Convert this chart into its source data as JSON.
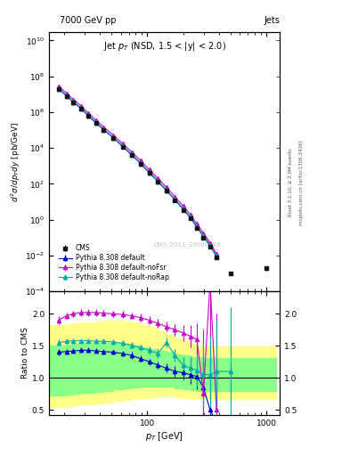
{
  "title_top": "7000 GeV pp",
  "title_right": "Jets",
  "plot_label": "Jet $p_T$ (NSD, 1.5 < |y| < 2.0)",
  "watermark": "CMS_2011_S9086218",
  "right_label": "Rivet 3.1.10, ≥ 2.9M events",
  "right_label2": "mcplots.cern.ch [arXiv:1306.3436]",
  "cms_pt": [
    18,
    21,
    24,
    28,
    32,
    37,
    43,
    52,
    62,
    74,
    88,
    104,
    123,
    145,
    171,
    200,
    230,
    261,
    296,
    337,
    381,
    500,
    700,
    1000
  ],
  "cms_val": [
    20000000.0,
    8000000.0,
    3500000.0,
    1500000.0,
    600000.0,
    250000.0,
    100000.0,
    35000.0,
    12000.0,
    4000,
    1300,
    400,
    130,
    40,
    12,
    3.5,
    1.2,
    0.35,
    0.1,
    0.03,
    0.008,
    0.001,
    3e-05,
    0.002
  ],
  "cms_yerr_lo": [
    2000000.0,
    700000.0,
    300000.0,
    120000.0,
    45000.0,
    18000.0,
    7000,
    2400,
    850,
    270,
    90,
    27,
    9,
    2.8,
    0.9,
    0.3,
    0.12,
    0.04,
    0.012,
    0.004,
    0.001,
    0.0002,
    1e-05,
    0.0005
  ],
  "cms_yerr_hi": [
    2000000.0,
    700000.0,
    300000.0,
    120000.0,
    45000.0,
    18000.0,
    7000,
    2400,
    850,
    270,
    90,
    27,
    9,
    2.8,
    0.9,
    0.3,
    0.12,
    0.04,
    0.012,
    0.004,
    0.001,
    0.0002,
    1e-05,
    0.0005
  ],
  "py_default_pt": [
    18,
    21,
    24,
    28,
    32,
    37,
    43,
    52,
    62,
    74,
    88,
    104,
    123,
    145,
    171,
    200,
    230,
    261,
    296,
    337,
    381
  ],
  "py_default_val": [
    20000000.0,
    8200000.0,
    3600000.0,
    1550000.0,
    620000.0,
    260000.0,
    105000.0,
    37000.0,
    12500.0,
    4100,
    1350,
    415,
    136,
    42,
    13,
    3.8,
    1.3,
    0.38,
    0.12,
    0.035,
    0.009
  ],
  "py_default_err_lo": [
    500000.0,
    200000.0,
    80000.0,
    35000.0,
    14000.0,
    5800,
    2300,
    820,
    280,
    90,
    28,
    9,
    2.8,
    0.9,
    0.28,
    0.09,
    0.035,
    0.012,
    0.005,
    0.003,
    0.002
  ],
  "py_default_err_hi": [
    500000.0,
    200000.0,
    80000.0,
    35000.0,
    14000.0,
    5800,
    2300,
    820,
    280,
    90,
    28,
    9,
    2.8,
    0.9,
    0.28,
    0.09,
    0.035,
    0.012,
    0.005,
    0.003,
    0.002
  ],
  "py_noFsr_pt": [
    18,
    21,
    24,
    28,
    32,
    37,
    43,
    52,
    62,
    74,
    88,
    104,
    123,
    145,
    171,
    200,
    230,
    261,
    296,
    337,
    381
  ],
  "py_noFsr_val": [
    28000000.0,
    11500000.0,
    5100000.0,
    2200000.0,
    880000.0,
    370000.0,
    150000.0,
    53000.0,
    18000.0,
    6000,
    2000,
    620,
    204,
    63,
    19.5,
    5.7,
    1.95,
    0.58,
    0.18,
    0.052,
    0.013
  ],
  "py_noFsr_err_lo": [
    700000.0,
    300000.0,
    120000.0,
    50000.0,
    20000.0,
    8500,
    3300,
    1200,
    400,
    130,
    42,
    13,
    4.2,
    1.3,
    0.42,
    0.13,
    0.05,
    0.017,
    0.007,
    0.005,
    0.003
  ],
  "py_noFsr_err_hi": [
    700000.0,
    300000.0,
    120000.0,
    50000.0,
    20000.0,
    8500,
    3300,
    1200,
    400,
    130,
    42,
    13,
    4.2,
    1.3,
    0.42,
    0.13,
    0.05,
    0.017,
    0.007,
    0.005,
    0.003
  ],
  "py_noRap_pt": [
    18,
    21,
    24,
    28,
    32,
    37,
    43,
    52,
    62,
    74,
    88,
    104,
    123,
    145,
    171,
    200,
    230,
    261,
    296,
    337,
    381
  ],
  "py_noRap_val": [
    22000000.0,
    9000000.0,
    3900000.0,
    1680000.0,
    680000.0,
    285000.0,
    115000.0,
    40500.0,
    13800.0,
    4500,
    1480,
    455,
    150,
    46,
    14,
    4.2,
    1.45,
    0.43,
    0.135,
    0.04,
    0.01
  ],
  "py_noRap_err_lo": [
    550000.0,
    220000.0,
    90000.0,
    38000.0,
    15000.0,
    6400,
    2550,
    900,
    308,
    100,
    31,
    10,
    3,
    1,
    0.31,
    0.1,
    0.04,
    0.013,
    0.006,
    0.004,
    0.002
  ],
  "py_noRap_err_hi": [
    550000.0,
    220000.0,
    90000.0,
    38000.0,
    15000.0,
    6400,
    2550,
    900,
    308,
    100,
    31,
    10,
    3,
    1,
    0.31,
    0.1,
    0.04,
    0.013,
    0.006,
    0.004,
    0.002
  ],
  "ratio_default_pt": [
    18,
    21,
    24,
    28,
    32,
    37,
    43,
    52,
    62,
    74,
    88,
    104,
    123,
    145,
    171,
    200,
    230,
    261,
    296,
    337,
    381
  ],
  "ratio_default_val": [
    1.4,
    1.41,
    1.42,
    1.43,
    1.43,
    1.42,
    1.41,
    1.4,
    1.38,
    1.35,
    1.3,
    1.25,
    1.2,
    1.15,
    1.1,
    1.08,
    1.05,
    1.02,
    0.85,
    0.5,
    0.3
  ],
  "ratio_default_err": [
    0.05,
    0.04,
    0.04,
    0.04,
    0.04,
    0.04,
    0.04,
    0.04,
    0.04,
    0.05,
    0.05,
    0.05,
    0.06,
    0.07,
    0.08,
    0.1,
    0.15,
    0.2,
    0.5,
    0.8,
    1.0
  ],
  "ratio_noFsr_pt": [
    18,
    21,
    24,
    28,
    32,
    37,
    43,
    52,
    62,
    74,
    88,
    104,
    123,
    145,
    171,
    200,
    230,
    261,
    296,
    337,
    381
  ],
  "ratio_noFsr_val": [
    1.9,
    1.97,
    2.0,
    2.02,
    2.02,
    2.02,
    2.01,
    2.0,
    1.99,
    1.97,
    1.94,
    1.9,
    1.85,
    1.8,
    1.75,
    1.7,
    1.65,
    1.6,
    0.75,
    2.5,
    0.5
  ],
  "ratio_noFsr_err": [
    0.06,
    0.05,
    0.05,
    0.05,
    0.05,
    0.05,
    0.05,
    0.05,
    0.05,
    0.05,
    0.06,
    0.06,
    0.07,
    0.08,
    0.09,
    0.12,
    0.18,
    0.25,
    1.0,
    1.5,
    1.5
  ],
  "ratio_noRap_pt": [
    18,
    21,
    24,
    28,
    32,
    37,
    43,
    52,
    62,
    74,
    88,
    104,
    123,
    145,
    171,
    200,
    230,
    261,
    296,
    337,
    381,
    500
  ],
  "ratio_noRap_val": [
    1.55,
    1.57,
    1.58,
    1.58,
    1.58,
    1.57,
    1.57,
    1.56,
    1.54,
    1.51,
    1.47,
    1.43,
    1.38,
    1.55,
    1.35,
    1.2,
    1.15,
    1.12,
    1.05,
    1.05,
    1.1,
    1.1
  ],
  "ratio_noRap_err": [
    0.05,
    0.04,
    0.04,
    0.04,
    0.04,
    0.04,
    0.04,
    0.04,
    0.05,
    0.05,
    0.05,
    0.06,
    0.07,
    0.08,
    0.1,
    0.13,
    0.18,
    0.25,
    0.5,
    0.6,
    0.8,
    1.0
  ],
  "band_yellow_pt": [
    15,
    18,
    21,
    24,
    28,
    32,
    37,
    43,
    52,
    62,
    74,
    88,
    104,
    123,
    145,
    171,
    200,
    230,
    261,
    296,
    337,
    381,
    500,
    700,
    1000,
    1200
  ],
  "band_yellow_lo": [
    0.55,
    0.55,
    0.56,
    0.57,
    0.58,
    0.59,
    0.6,
    0.62,
    0.64,
    0.66,
    0.68,
    0.68,
    0.7,
    0.71,
    0.72,
    0.7,
    0.68,
    0.68,
    0.68,
    0.67,
    0.67,
    0.67,
    0.67,
    0.67,
    0.67,
    0.67
  ],
  "band_yellow_hi": [
    1.82,
    1.82,
    1.84,
    1.85,
    1.86,
    1.87,
    1.88,
    1.89,
    1.89,
    1.88,
    1.86,
    1.83,
    1.78,
    1.73,
    1.67,
    1.62,
    1.57,
    1.53,
    1.51,
    1.49,
    1.49,
    1.49,
    1.49,
    1.49,
    1.49,
    1.49
  ],
  "band_green_pt": [
    15,
    18,
    21,
    24,
    28,
    32,
    37,
    43,
    52,
    62,
    74,
    88,
    104,
    123,
    145,
    171,
    200,
    230,
    261,
    296,
    337,
    381,
    500,
    700,
    1000,
    1200
  ],
  "band_green_lo": [
    0.72,
    0.73,
    0.74,
    0.75,
    0.76,
    0.77,
    0.78,
    0.8,
    0.82,
    0.84,
    0.85,
    0.86,
    0.87,
    0.87,
    0.86,
    0.84,
    0.82,
    0.81,
    0.8,
    0.79,
    0.79,
    0.79,
    0.79,
    0.79,
    0.79,
    0.79
  ],
  "band_green_hi": [
    1.5,
    1.51,
    1.52,
    1.53,
    1.54,
    1.54,
    1.55,
    1.55,
    1.54,
    1.52,
    1.5,
    1.48,
    1.45,
    1.42,
    1.4,
    1.37,
    1.35,
    1.33,
    1.32,
    1.31,
    1.31,
    1.31,
    1.31,
    1.31,
    1.31,
    1.31
  ],
  "color_default": "#0000cc",
  "color_noFsr": "#cc00cc",
  "color_noRap": "#00aaaa",
  "color_cms": "#111111",
  "color_yellow": "#ffff88",
  "color_green": "#88ff88",
  "xlim": [
    15,
    1300
  ],
  "ylim_main": [
    0.0001,
    30000000000.0
  ],
  "ylim_ratio": [
    0.42,
    2.35
  ],
  "ratio_yticks": [
    0.5,
    1.0,
    1.5,
    2.0
  ]
}
